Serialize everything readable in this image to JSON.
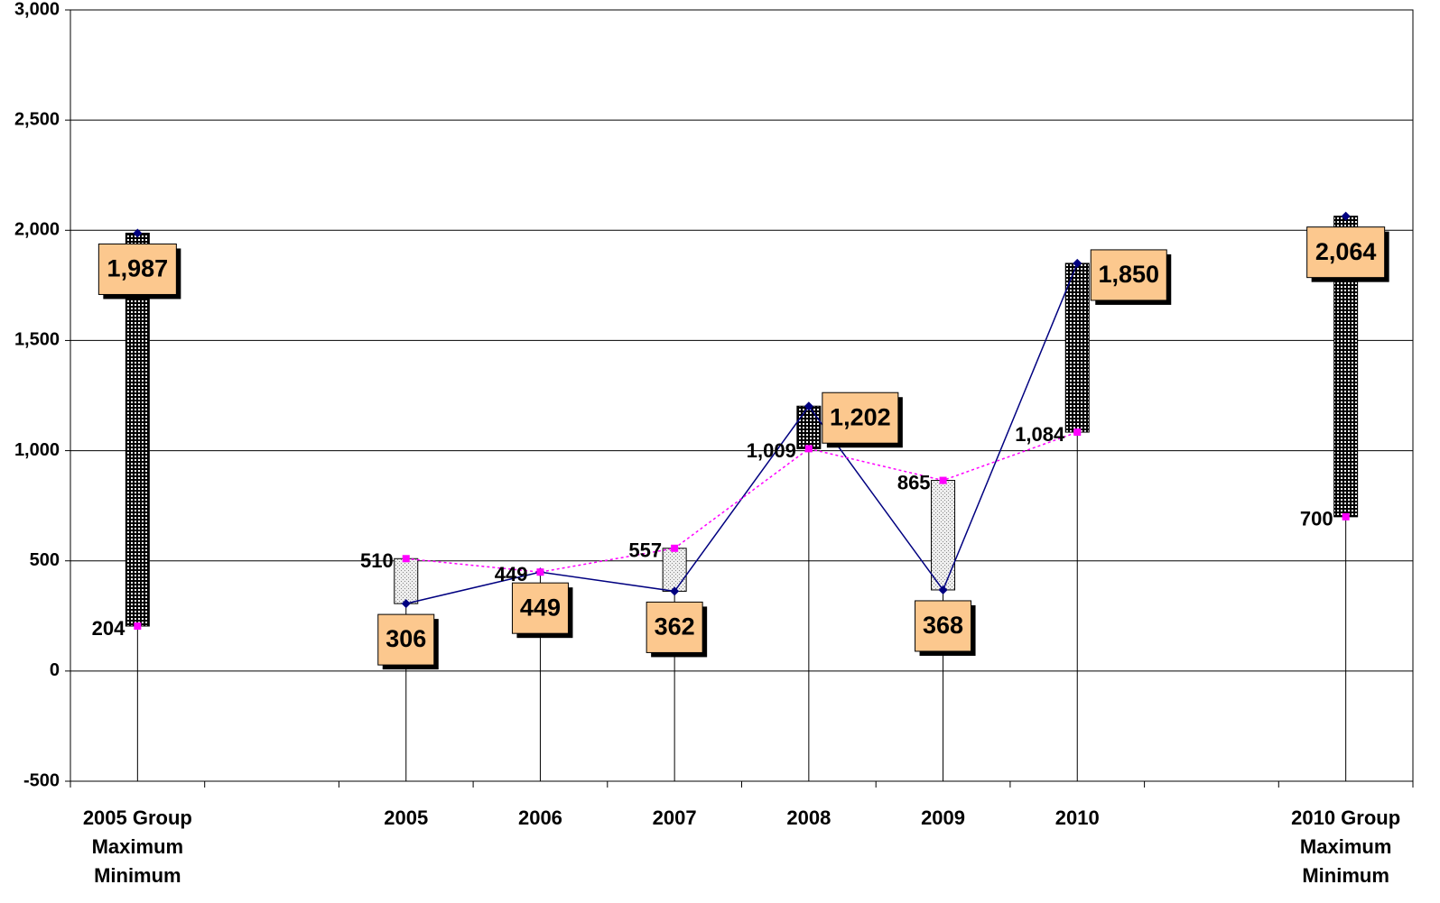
{
  "chart_data": {
    "type": "high-low",
    "categories": [
      "2005 Group\nMaximum\nMinimum",
      null,
      "2005",
      "2006",
      "2007",
      "2008",
      "2009",
      "2010",
      null,
      "2010 Group\nMaximum\nMinimum"
    ],
    "series": [
      {
        "color": "#000080",
        "values": [
          1987,
          null,
          306,
          449,
          362,
          1202,
          368,
          1850,
          null,
          2064
        ],
        "value_labels": [
          "1,987",
          null,
          "306",
          "449",
          "362",
          "1,202",
          "368",
          "1,850",
          null,
          "2,064"
        ]
      },
      {
        "color": "#ff00ff",
        "values": [
          204,
          null,
          510,
          449,
          557,
          1009,
          865,
          1084,
          null,
          700
        ],
        "value_labels": [
          "204",
          null,
          "510",
          "449",
          "557",
          "1,009",
          "865",
          "1,084",
          null,
          "700"
        ]
      }
    ],
    "ylim": [
      -500,
      3000
    ],
    "yticks": [
      {
        "value": -500,
        "label": "-500"
      },
      0,
      500,
      {
        "value": 1000,
        "label": "1,000"
      },
      {
        "value": 1500,
        "label": "1,500"
      },
      {
        "value": 2000,
        "label": "2,000"
      },
      {
        "value": 2500,
        "label": "2,500"
      },
      {
        "value": 3000,
        "label": "3,000"
      }
    ],
    "grid": true
  }
}
